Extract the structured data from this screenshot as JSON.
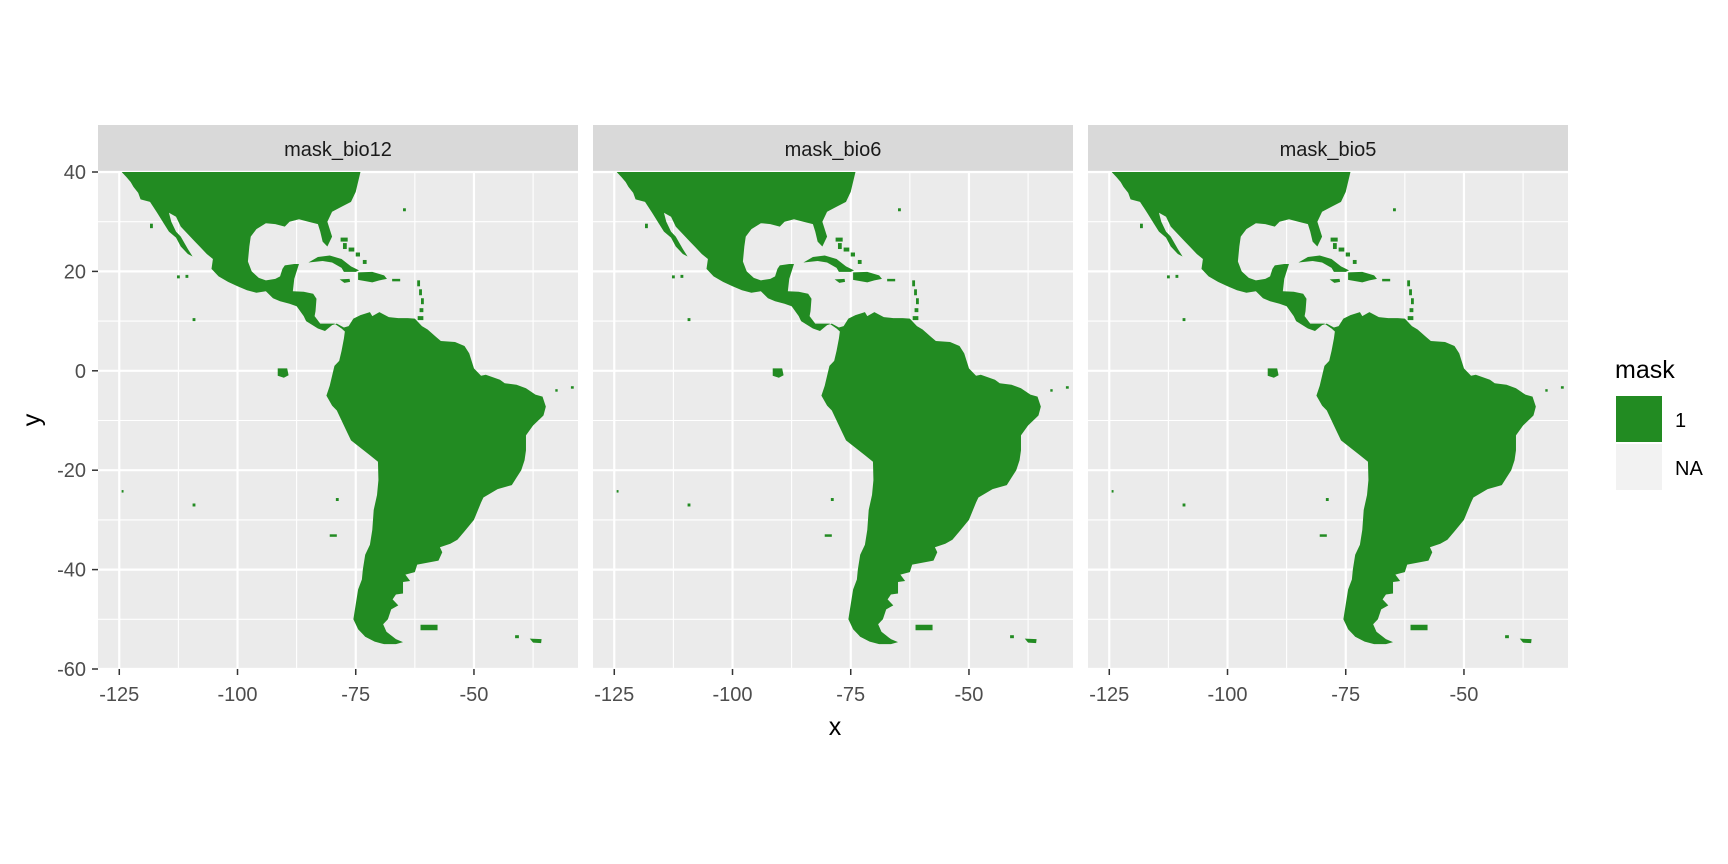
{
  "chart_data": {
    "type": "raster map (faceted)",
    "facets": [
      "mask_bio12",
      "mask_bio6",
      "mask_bio5"
    ],
    "xlabel": "x",
    "ylabel": "y",
    "x_ticks": [
      -125,
      -100,
      -75,
      -50
    ],
    "y_ticks": [
      40,
      20,
      0,
      -20,
      -40,
      -60
    ],
    "xlim": [
      -129.5,
      -28
    ],
    "ylim": [
      -60,
      40
    ],
    "legend": {
      "title": "mask",
      "position": "right",
      "entries": [
        {
          "label": "1",
          "color": "#228B22"
        },
        {
          "label": "NA",
          "color": "#F2F2F2"
        }
      ]
    },
    "colors": {
      "panel_background": "#EBEBEB",
      "grid": "#FFFFFF",
      "strip_background": "#D9D9D9",
      "mask_fill": "#228B22"
    },
    "grid": true
  }
}
